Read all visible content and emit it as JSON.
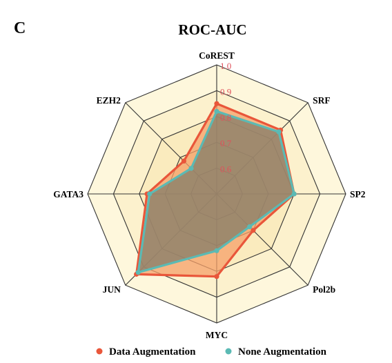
{
  "panel_label": "C",
  "chart_data": {
    "type": "radar",
    "title": "ROC-AUC",
    "axes": [
      "CoREST",
      "SRF",
      "SP2",
      "Pol2b",
      "MYC",
      "JUN",
      "GATA3",
      "EZH2"
    ],
    "rlim": [
      0.5,
      1.0
    ],
    "ticks": [
      0.6,
      0.7,
      0.8,
      0.9,
      1.0
    ],
    "tick_labels": [
      "0.6",
      "0.7",
      "0.8",
      "0.9",
      "1.0"
    ],
    "grid": true,
    "legend_position": "bottom",
    "colors": {
      "tick_label": "#e0505a",
      "grid_line": "#333333",
      "ring_outer": "#fef7dc",
      "ring_inner": "#f5dfa0",
      "data_fill": "#f5a06a",
      "none_fill": "#8a7f6a"
    },
    "series": [
      {
        "name": "Data Augmentation",
        "color": "#e9563a",
        "values": [
          0.85,
          0.85,
          0.8,
          0.7,
          0.82,
          0.94,
          0.77,
          0.68
        ]
      },
      {
        "name": "None Augmentation",
        "color": "#5bbab4",
        "values": [
          0.82,
          0.84,
          0.8,
          0.68,
          0.72,
          0.93,
          0.76,
          0.64
        ]
      }
    ]
  }
}
